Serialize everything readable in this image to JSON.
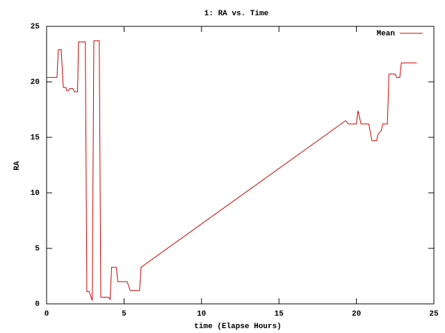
{
  "chart_data": {
    "type": "line",
    "title": "1: RA vs. Time",
    "xlabel": "time (Elapse Hours)",
    "ylabel": "RA",
    "x": [
      0,
      0.67,
      0.76,
      0.94,
      1.08,
      1.25,
      1.3,
      1.4,
      1.5,
      1.7,
      1.8,
      2.0,
      2.06,
      2.5,
      2.6,
      2.75,
      2.95,
      3.05,
      3.4,
      3.5,
      4.0,
      4.1,
      4.2,
      4.5,
      4.6,
      5.2,
      5.4,
      6.0,
      6.1,
      19.3,
      19.5,
      20.0,
      20.1,
      20.3,
      20.8,
      21.0,
      21.3,
      21.4,
      21.6,
      21.7,
      22.0,
      22.1,
      22.5,
      22.6,
      22.8,
      22.9,
      23.9
    ],
    "series": [
      {
        "name": "Mean",
        "color": "#cc0000",
        "values": [
          20.4,
          20.4,
          22.9,
          22.9,
          19.5,
          19.5,
          19.2,
          19.2,
          19.4,
          19.4,
          19.1,
          19.1,
          23.6,
          23.6,
          1.1,
          1.1,
          0.3,
          23.7,
          23.7,
          0.6,
          0.6,
          0.4,
          3.3,
          3.3,
          2.0,
          2.0,
          1.2,
          1.2,
          3.3,
          16.5,
          16.2,
          16.2,
          17.4,
          16.2,
          16.2,
          14.7,
          14.7,
          15.3,
          15.6,
          16.2,
          16.2,
          20.7,
          20.7,
          20.4,
          20.4,
          21.7,
          21.7
        ]
      }
    ],
    "xlim": [
      0,
      25
    ],
    "xticks": [
      0,
      5,
      10,
      15,
      20,
      25
    ],
    "ylim": [
      0,
      25
    ],
    "yticks": [
      0,
      5,
      10,
      15,
      20,
      25
    ],
    "grid": false,
    "legend": "top-right"
  }
}
